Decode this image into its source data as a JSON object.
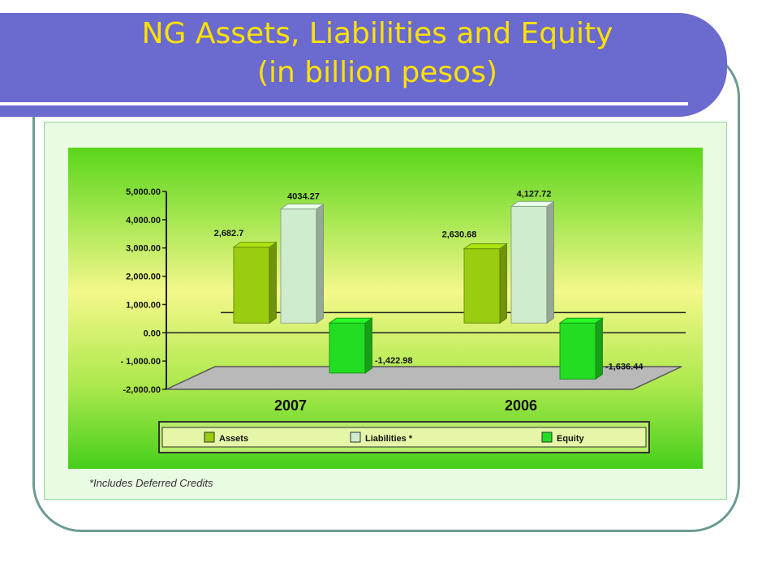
{
  "slide": {
    "title_line1": "NG Assets, Liabilities and Equity",
    "title_line2": "(in billion pesos)",
    "footnote": "*Includes Deferred Credits",
    "colors": {
      "title_bar": "#6a6acf",
      "title_text": "#ffe100",
      "assets": "#9acc10",
      "liabilities": "#cfeccf",
      "equity": "#22dd22"
    }
  },
  "chart_data": {
    "type": "bar",
    "categories": [
      "2007",
      "2006"
    ],
    "series": [
      {
        "name": "Assets",
        "values": [
          2682.7,
          2630.68
        ],
        "labels": [
          "2,682.7",
          "2,630.68"
        ],
        "color": "#9acc10"
      },
      {
        "name": "Liabilities *",
        "values": [
          4034.27,
          4127.72
        ],
        "labels": [
          "4034.27",
          "4,127.72"
        ],
        "color": "#cfeccf"
      },
      {
        "name": "Equity",
        "values": [
          -1422.98,
          -1636.44
        ],
        "labels": [
          "-1,422.98",
          "-1,636.44"
        ],
        "color": "#22dd22"
      }
    ],
    "yticks": [
      "5,000.00",
      "4,000.00",
      "3,000.00",
      "2,000.00",
      "1,000.00",
      "0.00",
      "- 1,000.00",
      "-2,000.00"
    ],
    "ytick_values": [
      5000,
      4000,
      3000,
      2000,
      1000,
      0,
      -1000,
      -2000
    ],
    "ylim": [
      -2000,
      5000
    ],
    "legend_position": "bottom",
    "three_d": true
  }
}
